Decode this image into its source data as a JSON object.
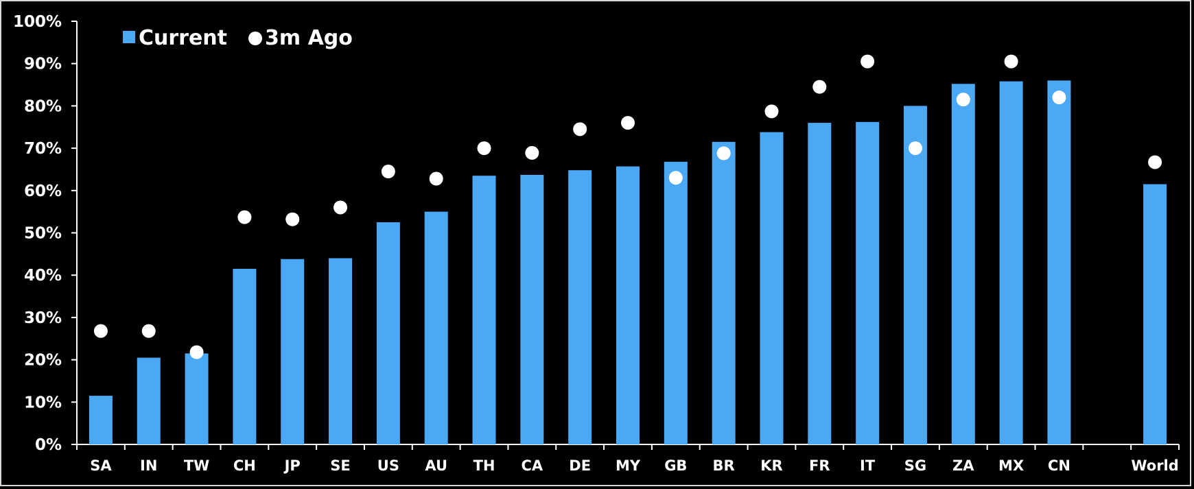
{
  "chart_data": {
    "type": "bar",
    "categories": [
      "SA",
      "IN",
      "TW",
      "CH",
      "JP",
      "SE",
      "US",
      "AU",
      "TH",
      "CA",
      "DE",
      "MY",
      "GB",
      "BR",
      "KR",
      "FR",
      "IT",
      "SG",
      "ZA",
      "MX",
      "CN",
      "",
      "World"
    ],
    "series": [
      {
        "name": "Current",
        "kind": "bar",
        "color": "#4aa8f5",
        "values": [
          11.5,
          20.5,
          21.5,
          41.5,
          43.8,
          44.0,
          52.5,
          55.0,
          63.5,
          63.7,
          64.8,
          65.7,
          66.8,
          71.5,
          73.8,
          76.0,
          76.2,
          80.0,
          85.2,
          85.8,
          86.0,
          null,
          61.5
        ]
      },
      {
        "name": "3m Ago",
        "kind": "marker",
        "color": "#ffffff",
        "values": [
          26.8,
          26.8,
          21.8,
          53.7,
          53.2,
          56.0,
          64.5,
          62.8,
          70.0,
          68.9,
          74.5,
          76.0,
          63.0,
          68.8,
          78.7,
          84.5,
          90.5,
          70.0,
          81.5,
          90.5,
          82.0,
          null,
          66.7
        ]
      }
    ],
    "ylim": [
      0,
      100
    ],
    "yticks": [
      "0%",
      "10%",
      "20%",
      "30%",
      "40%",
      "50%",
      "60%",
      "70%",
      "80%",
      "90%",
      "100%"
    ],
    "legend_position": "top-left",
    "title": "",
    "xlabel": "",
    "ylabel": ""
  }
}
